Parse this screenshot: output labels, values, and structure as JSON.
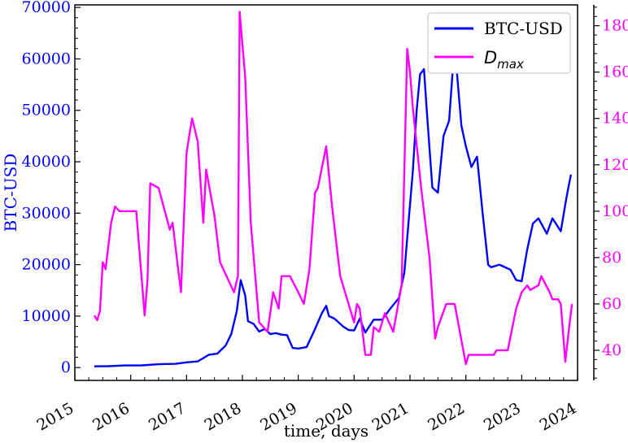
{
  "chart_data": {
    "type": "line",
    "xlabel": "time, days",
    "ylabel_left": "BTC-USD",
    "ylabel_right": "",
    "x_ticks": [
      "2015",
      "2016",
      "2017",
      "2018",
      "2019",
      "2020",
      "2021",
      "2022",
      "2023",
      "2024"
    ],
    "y_left_ticks": [
      0,
      10000,
      20000,
      30000,
      40000,
      50000,
      60000,
      70000
    ],
    "y_right_ticks": [
      40,
      60,
      80,
      100,
      120,
      140,
      160,
      180
    ],
    "xlim": [
      2015.0,
      2024.0
    ],
    "ylim_left": [
      -2500,
      70500
    ],
    "ylim_right": [
      27,
      189
    ],
    "legend": {
      "position": "top-right",
      "entries": [
        "BTC-USD",
        "D",
        "max"
      ]
    },
    "colors": {
      "btc": "#0000ff",
      "dmax": "#ff00ff"
    },
    "series": [
      {
        "name": "BTC-USD",
        "axis": "left",
        "color": "#0000ff",
        "x": [
          2015.35,
          2015.6,
          2015.9,
          2016.2,
          2016.5,
          2016.8,
          2017.0,
          2017.2,
          2017.4,
          2017.55,
          2017.7,
          2017.8,
          2017.9,
          2017.97,
          2018.05,
          2018.1,
          2018.2,
          2018.3,
          2018.4,
          2018.5,
          2018.6,
          2018.7,
          2018.8,
          2018.9,
          2019.0,
          2019.15,
          2019.3,
          2019.42,
          2019.5,
          2019.55,
          2019.65,
          2019.8,
          2019.9,
          2020.0,
          2020.1,
          2020.2,
          2020.35,
          2020.5,
          2020.65,
          2020.8,
          2020.9,
          2020.98,
          2021.05,
          2021.12,
          2021.18,
          2021.25,
          2021.3,
          2021.4,
          2021.5,
          2021.6,
          2021.7,
          2021.8,
          2021.85,
          2021.92,
          2022.0,
          2022.1,
          2022.2,
          2022.3,
          2022.4,
          2022.45,
          2022.6,
          2022.8,
          2022.9,
          2023.0,
          2023.1,
          2023.2,
          2023.3,
          2023.45,
          2023.55,
          2023.7,
          2023.8,
          2023.88
        ],
        "y": [
          240,
          270,
          400,
          430,
          650,
          730,
          1000,
          1200,
          2500,
          2700,
          4300,
          6500,
          11000,
          17000,
          14000,
          9000,
          8500,
          7000,
          7500,
          6500,
          6700,
          6400,
          6300,
          3800,
          3700,
          4000,
          7500,
          10500,
          12000,
          10000,
          9500,
          8000,
          7300,
          7200,
          9500,
          6800,
          9300,
          9300,
          11500,
          13500,
          18500,
          29000,
          38000,
          50000,
          57000,
          58000,
          50000,
          35000,
          34000,
          45000,
          48000,
          63000,
          56000,
          47000,
          43000,
          39000,
          41000,
          30000,
          20000,
          19500,
          20000,
          19000,
          17000,
          16800,
          23000,
          28000,
          29000,
          26000,
          29000,
          26500,
          33000,
          37500
        ]
      },
      {
        "name": "D max",
        "axis": "right",
        "color": "#ff00ff",
        "x": [
          2015.35,
          2015.4,
          2015.45,
          2015.5,
          2015.55,
          2015.65,
          2015.72,
          2015.8,
          2015.85,
          2016.1,
          2016.25,
          2016.3,
          2016.35,
          2016.5,
          2016.7,
          2016.75,
          2016.85,
          2016.9,
          2017.0,
          2017.05,
          2017.1,
          2017.2,
          2017.3,
          2017.35,
          2017.5,
          2017.6,
          2017.85,
          2017.92,
          2017.95,
          2018.05,
          2018.15,
          2018.3,
          2018.45,
          2018.55,
          2018.65,
          2018.7,
          2018.85,
          2019.0,
          2019.1,
          2019.2,
          2019.3,
          2019.35,
          2019.5,
          2019.6,
          2019.75,
          2019.9,
          2020.0,
          2020.05,
          2020.1,
          2020.2,
          2020.3,
          2020.35,
          2020.45,
          2020.55,
          2020.7,
          2020.85,
          2020.95,
          2021.0,
          2021.05,
          2021.2,
          2021.35,
          2021.45,
          2021.5,
          2021.65,
          2021.75,
          2021.8,
          2022.0,
          2022.05,
          2022.15,
          2022.2,
          2022.5,
          2022.55,
          2022.75,
          2022.9,
          2023.0,
          2023.1,
          2023.15,
          2023.3,
          2023.35,
          2023.5,
          2023.55,
          2023.65,
          2023.7,
          2023.78,
          2023.85,
          2023.9
        ],
        "y": [
          55,
          53,
          57,
          78,
          75,
          95,
          102,
          100,
          100,
          100,
          55,
          70,
          112,
          110,
          92,
          95,
          75,
          65,
          125,
          133,
          140,
          130,
          95,
          118,
          98,
          78,
          65,
          72,
          186,
          158,
          95,
          52,
          48,
          65,
          58,
          72,
          72,
          65,
          60,
          75,
          108,
          110,
          128,
          103,
          72,
          60,
          52,
          60,
          58,
          38,
          38,
          50,
          48,
          56,
          48,
          68,
          170,
          160,
          145,
          110,
          80,
          45,
          50,
          60,
          60,
          60,
          34,
          38,
          38,
          38,
          38,
          40,
          40,
          58,
          65,
          68,
          66,
          68,
          72,
          65,
          62,
          62,
          60,
          35,
          50,
          60
        ]
      }
    ]
  }
}
